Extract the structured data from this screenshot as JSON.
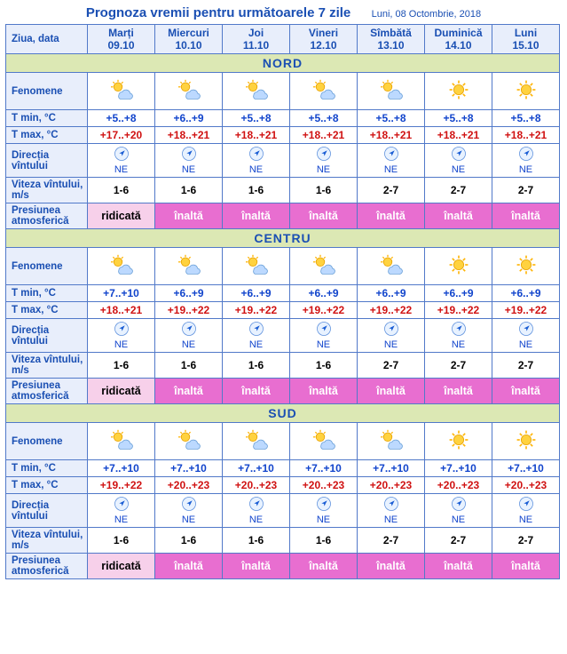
{
  "title": "Prognoza vremii pentru următoarele 7 zile",
  "subtitle": "Luni, 08 Octombrie, 2018",
  "colors": {
    "border": "#5179c9",
    "header_bg": "#e8eefb",
    "header_text": "#1a4fb3",
    "region_bg": "#dce8b4",
    "tmin_text": "#1144cc",
    "tmax_text": "#d01212",
    "pressure_pink": "#f7d0ea",
    "pressure_magenta": "#e86ed0"
  },
  "header": {
    "rowlabel": "Ziua, data",
    "days": [
      {
        "name": "Marți",
        "date": "09.10"
      },
      {
        "name": "Miercuri",
        "date": "10.10"
      },
      {
        "name": "Joi",
        "date": "11.10"
      },
      {
        "name": "Vineri",
        "date": "12.10"
      },
      {
        "name": "Sîmbătă",
        "date": "13.10"
      },
      {
        "name": "Duminică",
        "date": "14.10"
      },
      {
        "name": "Luni",
        "date": "15.10"
      }
    ]
  },
  "rowlabels": {
    "phenomena": "Fenomene",
    "tmin": "T min, °C",
    "tmax": "T max, °C",
    "wind_dir": "Direcția vîntului",
    "wind_speed": "Viteza vîntului, m/s",
    "pressure": "Presiunea atmosferică"
  },
  "regions": [
    {
      "name": "NORD",
      "phenomena": [
        "partly-cloudy",
        "partly-cloudy",
        "partly-cloudy",
        "partly-cloudy",
        "partly-cloudy",
        "sunny",
        "sunny"
      ],
      "tmin": [
        "+5..+8",
        "+6..+9",
        "+5..+8",
        "+5..+8",
        "+5..+8",
        "+5..+8",
        "+5..+8"
      ],
      "tmax": [
        "+17..+20",
        "+18..+21",
        "+18..+21",
        "+18..+21",
        "+18..+21",
        "+18..+21",
        "+18..+21"
      ],
      "wind_dir": [
        "NE",
        "NE",
        "NE",
        "NE",
        "NE",
        "NE",
        "NE"
      ],
      "wind_speed": [
        "1-6",
        "1-6",
        "1-6",
        "1-6",
        "2-7",
        "2-7",
        "2-7"
      ],
      "pressure": [
        {
          "text": "ridicată",
          "class": "bg-pink"
        },
        {
          "text": "înaltă",
          "class": "bg-magenta"
        },
        {
          "text": "înaltă",
          "class": "bg-magenta"
        },
        {
          "text": "înaltă",
          "class": "bg-magenta"
        },
        {
          "text": "înaltă",
          "class": "bg-magenta"
        },
        {
          "text": "înaltă",
          "class": "bg-magenta"
        },
        {
          "text": "înaltă",
          "class": "bg-magenta"
        }
      ]
    },
    {
      "name": "CENTRU",
      "phenomena": [
        "partly-cloudy",
        "partly-cloudy",
        "partly-cloudy",
        "partly-cloudy",
        "partly-cloudy",
        "sunny",
        "sunny"
      ],
      "tmin": [
        "+7..+10",
        "+6..+9",
        "+6..+9",
        "+6..+9",
        "+6..+9",
        "+6..+9",
        "+6..+9"
      ],
      "tmax": [
        "+18..+21",
        "+19..+22",
        "+19..+22",
        "+19..+22",
        "+19..+22",
        "+19..+22",
        "+19..+22"
      ],
      "wind_dir": [
        "NE",
        "NE",
        "NE",
        "NE",
        "NE",
        "NE",
        "NE"
      ],
      "wind_speed": [
        "1-6",
        "1-6",
        "1-6",
        "1-6",
        "2-7",
        "2-7",
        "2-7"
      ],
      "pressure": [
        {
          "text": "ridicată",
          "class": "bg-pink"
        },
        {
          "text": "înaltă",
          "class": "bg-magenta"
        },
        {
          "text": "înaltă",
          "class": "bg-magenta"
        },
        {
          "text": "înaltă",
          "class": "bg-magenta"
        },
        {
          "text": "înaltă",
          "class": "bg-magenta"
        },
        {
          "text": "înaltă",
          "class": "bg-magenta"
        },
        {
          "text": "înaltă",
          "class": "bg-magenta"
        }
      ]
    },
    {
      "name": "SUD",
      "phenomena": [
        "partly-cloudy",
        "partly-cloudy",
        "partly-cloudy",
        "partly-cloudy",
        "partly-cloudy",
        "sunny",
        "sunny"
      ],
      "tmin": [
        "+7..+10",
        "+7..+10",
        "+7..+10",
        "+7..+10",
        "+7..+10",
        "+7..+10",
        "+7..+10"
      ],
      "tmax": [
        "+19..+22",
        "+20..+23",
        "+20..+23",
        "+20..+23",
        "+20..+23",
        "+20..+23",
        "+20..+23"
      ],
      "wind_dir": [
        "NE",
        "NE",
        "NE",
        "NE",
        "NE",
        "NE",
        "NE"
      ],
      "wind_speed": [
        "1-6",
        "1-6",
        "1-6",
        "1-6",
        "2-7",
        "2-7",
        "2-7"
      ],
      "pressure": [
        {
          "text": "ridicată",
          "class": "bg-pink"
        },
        {
          "text": "înaltă",
          "class": "bg-magenta"
        },
        {
          "text": "înaltă",
          "class": "bg-magenta"
        },
        {
          "text": "înaltă",
          "class": "bg-magenta"
        },
        {
          "text": "înaltă",
          "class": "bg-magenta"
        },
        {
          "text": "înaltă",
          "class": "bg-magenta"
        },
        {
          "text": "înaltă",
          "class": "bg-magenta"
        }
      ]
    }
  ]
}
